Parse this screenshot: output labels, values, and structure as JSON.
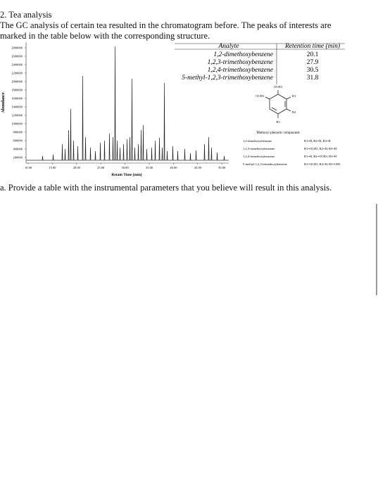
{
  "heading": "2. Tea analysis",
  "paragraph": [
    "The GC analysis of certain tea resulted in the chromatogram before. The peaks of interests are",
    "marked in the table below with the corresponding structure."
  ],
  "figure": {
    "ylabel": "Abundance",
    "xlabel": "Retain Time [min]",
    "yticks": [
      "2800000",
      "2600000",
      "2400000",
      "2200000",
      "2000000",
      "1800000",
      "1600000",
      "1400000",
      "1200000",
      "1000000",
      "800000",
      "600000",
      "400000",
      "200000"
    ],
    "xticks": [
      "10.00",
      "15.00",
      "20.00",
      "25.00",
      "30.00",
      "35.00",
      "40.00",
      "45.00",
      "50.00"
    ]
  },
  "table": {
    "header": [
      "Analyte",
      "Retention time (min)"
    ],
    "rows": [
      [
        "1,2-dimethoxybenzene",
        "20.1"
      ],
      [
        "1,2,3-trimethoxybenzene",
        "27.9"
      ],
      [
        "1,2,4-trimethoxybenzene",
        "30.5"
      ],
      [
        "5-methyl-1,2,3-trimethoxybenzene",
        "31.8"
      ]
    ]
  },
  "structure": {
    "top": "OCH3",
    "left": "OCH3",
    "r1": "R1",
    "r2": "R2",
    "r3": "R3"
  },
  "compounds": {
    "title": "Methoxy-phenolic compounds",
    "rows": [
      [
        "1,2-dimethoxybenzene",
        "R1=H, R2=H, R3=H"
      ],
      [
        "1,2,3-trimethoxybenzene",
        "R1=OCH3, R2=H, R3=H"
      ],
      [
        "1,2,4-trimethoxybenzene",
        "R1=H, R2=OCH3, R3=H"
      ],
      [
        "5-methyl-1,2,3-trimethoxybenzene",
        "R1=OCH3, R2=H, R3=CH3"
      ]
    ]
  },
  "question": "a. Provide a table with the instrumental parameters that you believe will result in this analysis."
}
